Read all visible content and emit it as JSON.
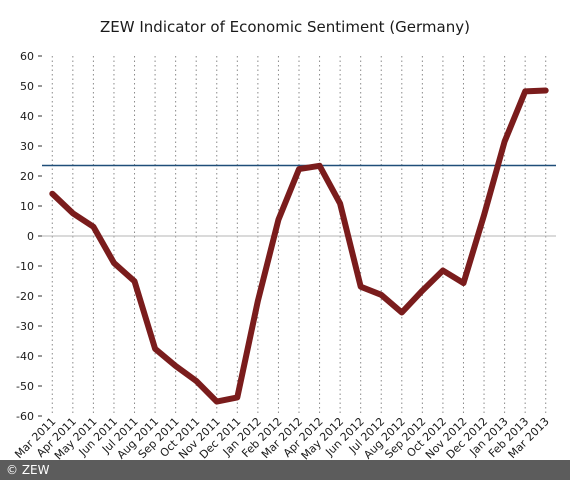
{
  "chart_data": {
    "type": "line",
    "title": "ZEW Indicator of Economic Sentiment (Germany)",
    "xlabel": "",
    "ylabel": "",
    "ylim": [
      -60,
      60
    ],
    "yticks": [
      -60,
      -50,
      -40,
      -30,
      -20,
      -10,
      0,
      10,
      20,
      30,
      40,
      50,
      60
    ],
    "categories": [
      "Mar 2011",
      "Apr 2011",
      "May 2011",
      "Jun 2011",
      "Jul 2011",
      "Aug 2011",
      "Sep 2011",
      "Oct 2011",
      "Nov 2011",
      "Dec 2011",
      "Jan 2012",
      "Feb 2012",
      "Mar 2012",
      "Apr 2012",
      "May 2012",
      "Jun 2012",
      "Jul 2012",
      "Aug 2012",
      "Sep 2012",
      "Oct 2012",
      "Nov 2012",
      "Dec 2012",
      "Jan 2013",
      "Feb 2013",
      "Mar 2013"
    ],
    "series": [
      {
        "values": [
          14.1,
          7.6,
          3.1,
          -9.0,
          -15.1,
          -37.6,
          -43.3,
          -48.3,
          -55.2,
          -53.8,
          -21.6,
          5.4,
          22.3,
          23.4,
          10.8,
          -16.9,
          -19.6,
          -25.5,
          -18.2,
          -11.5,
          -15.7,
          6.9,
          31.5,
          48.2,
          48.5
        ],
        "color": "#7a1c1c"
      }
    ],
    "reference_line": {
      "value": 23.5,
      "color": "#1f4e79"
    },
    "zero_line_color": "#b5b5b5",
    "grid": "vertical dotted"
  },
  "footer": {
    "copyright": "© ZEW"
  }
}
